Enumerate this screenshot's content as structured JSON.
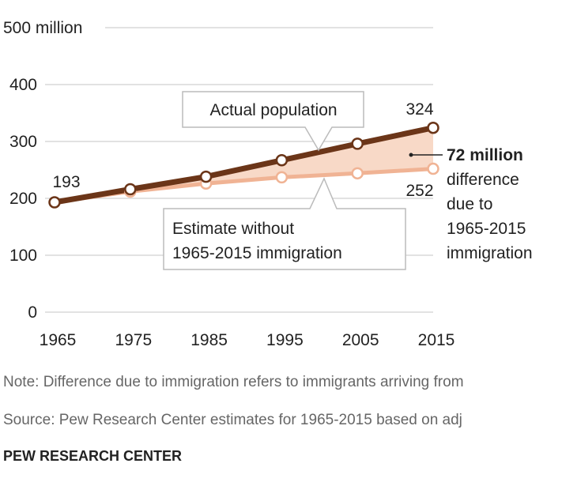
{
  "chart_data": {
    "type": "line",
    "x": [
      1965,
      1975,
      1985,
      1995,
      2005,
      2015
    ],
    "series": [
      {
        "name": "Actual population",
        "values": [
          193,
          216,
          238,
          267,
          296,
          324
        ],
        "color": "#6b3518"
      },
      {
        "name": "Estimate without 1965-2015 immigration",
        "values": [
          193,
          212,
          226,
          237,
          244,
          252
        ],
        "color": "#f0b394"
      }
    ],
    "band_color": "#f8d9c7",
    "y_ticks": [
      "0",
      "100",
      "200",
      "300",
      "400",
      "500 million"
    ],
    "x_ticks": [
      "1965",
      "1975",
      "1985",
      "1995",
      "2005",
      "2015"
    ],
    "ylim": [
      0,
      500
    ],
    "grid": true,
    "data_labels": {
      "start": "193",
      "end_actual": "324",
      "end_estimate": "252"
    },
    "callouts": {
      "actual": "Actual population",
      "estimate_line1": "Estimate without",
      "estimate_line2": "1965-2015 immigration"
    },
    "difference_annotation": {
      "value_text": "72 million",
      "lines": [
        "difference",
        "due to",
        "1965-2015",
        "immigration"
      ]
    }
  },
  "note": "Note: Difference due to immigration refers to immigrants arriving from",
  "source": "Source: Pew Research Center estimates for 1965-2015 based on adj",
  "credit": "PEW RESEARCH CENTER"
}
